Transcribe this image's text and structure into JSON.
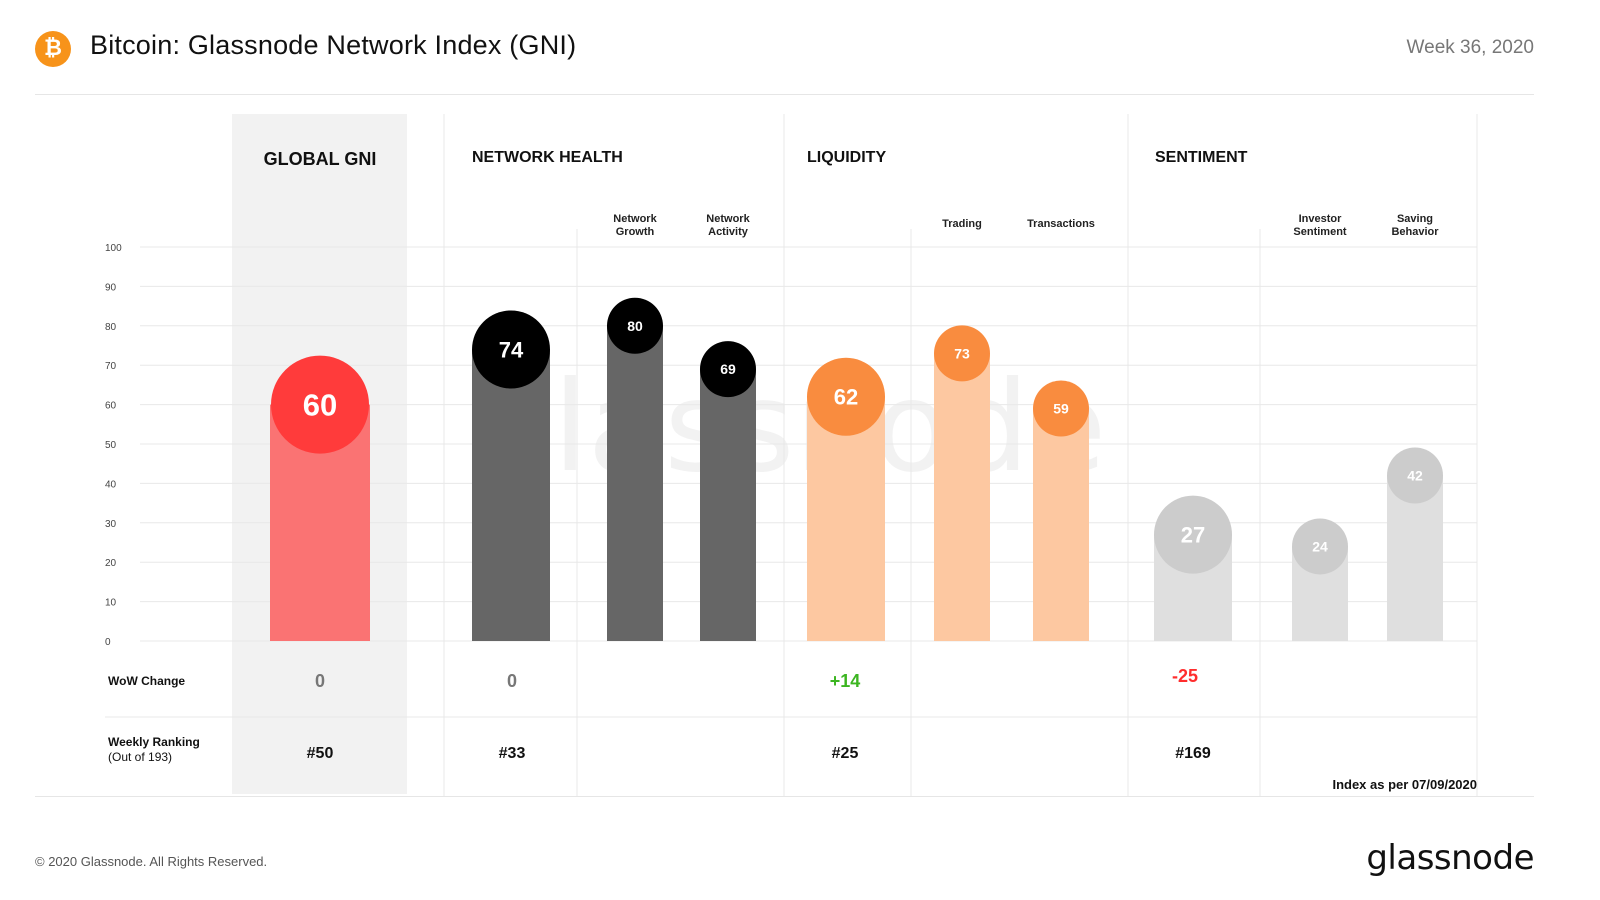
{
  "header": {
    "logo_glyph": "₿",
    "title": "Bitcoin: Glassnode Network Index (GNI)",
    "week": "Week 36, 2020"
  },
  "footer": {
    "copyright": "© 2020 Glassnode. All Rights Reserved.",
    "brand": "glassnode",
    "index_date": "Index as per 07/09/2020"
  },
  "watermark": "glassnode",
  "rows": {
    "wow_label": "WoW  Change",
    "ranking_label": "Weekly Ranking",
    "ranking_sub": "(Out of 193)"
  },
  "colors": {
    "global": "#ff3b3b",
    "global_bar": "#fa7373",
    "health": "#000000",
    "health_bar": "#666666",
    "liquidity": "#f98c3f",
    "liquidity_bar": "#fdc8a1",
    "sentiment": "#cccccc",
    "sentiment_bar": "#dfdfdf",
    "positive": "#3cb521",
    "negative": "#ff2d2d",
    "neutral": "#777777"
  },
  "chart_data": {
    "type": "bar",
    "ylim": [
      0,
      100
    ],
    "yticks": [
      0,
      10,
      20,
      30,
      40,
      50,
      60,
      70,
      80,
      90,
      100
    ],
    "groups": [
      {
        "name": "GLOBAL GNI",
        "wow": "0",
        "ranking": "#50",
        "bars": [
          {
            "label": "",
            "value": 60,
            "main": true
          }
        ]
      },
      {
        "name": "NETWORK HEALTH",
        "wow": "0",
        "ranking": "#33",
        "bars": [
          {
            "label": "",
            "value": 74,
            "main": true
          },
          {
            "label": "Network\nGrowth",
            "value": 80,
            "main": false
          },
          {
            "label": "Network\nActivity",
            "value": 69,
            "main": false
          }
        ]
      },
      {
        "name": "LIQUIDITY",
        "wow": "+14",
        "ranking": "#25",
        "bars": [
          {
            "label": "",
            "value": 62,
            "main": true
          },
          {
            "label": "Trading",
            "value": 73,
            "main": false
          },
          {
            "label": "Transactions",
            "value": 59,
            "main": false
          }
        ]
      },
      {
        "name": "SENTIMENT",
        "wow": "-25",
        "ranking": "#169",
        "bars": [
          {
            "label": "",
            "value": 27,
            "main": true
          },
          {
            "label": "Investor\nSentiment",
            "value": 24,
            "main": false
          },
          {
            "label": "Saving\nBehavior",
            "value": 42,
            "main": false
          }
        ]
      }
    ]
  }
}
